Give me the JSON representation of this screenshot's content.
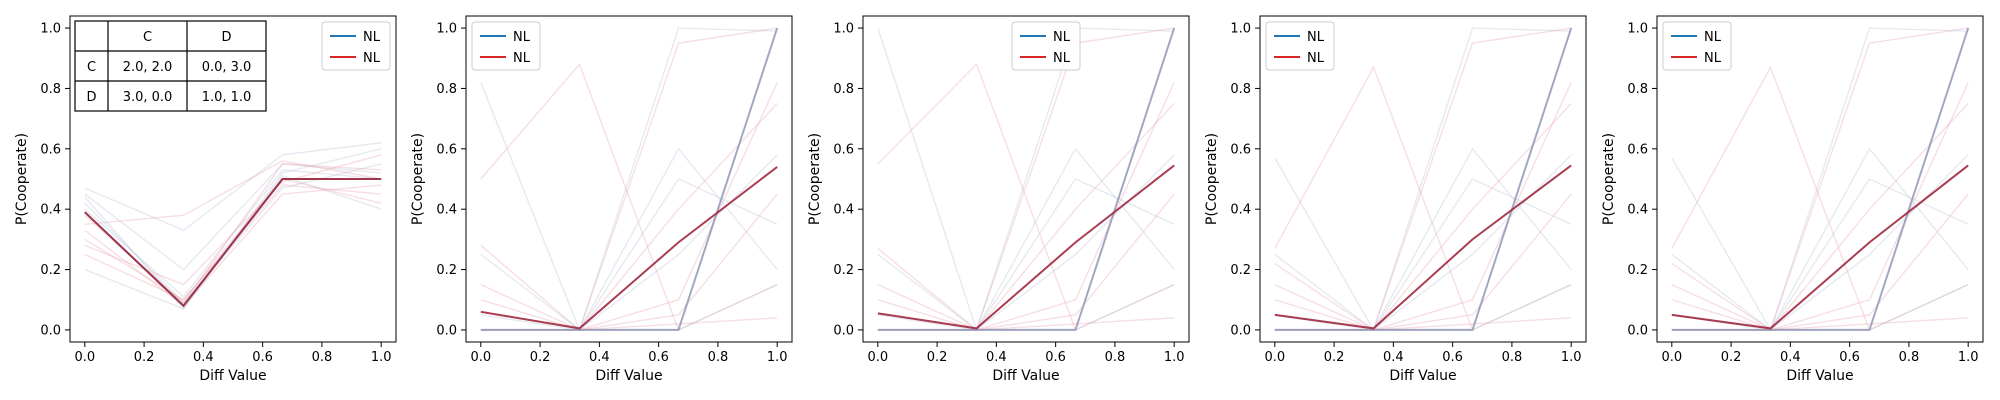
{
  "colors": {
    "blue": "#1f77b4",
    "red": "#d62728",
    "dark_line": "#a0283e",
    "faint_line": "#b8c0d8"
  },
  "payoff_table": {
    "col_headers": [
      "C",
      "D"
    ],
    "rows": [
      {
        "label": "C",
        "cells": [
          "2.0, 2.0",
          "0.0, 3.0"
        ]
      },
      {
        "label": "D",
        "cells": [
          "3.0, 0.0",
          "1.0, 1.0"
        ]
      }
    ]
  },
  "chart_data": [
    {
      "type": "line",
      "xlabel": "Diff Value",
      "ylabel": "P(Cooperate)",
      "xlim": [
        -0.05,
        1.05
      ],
      "ylim": [
        -0.04,
        1.04
      ],
      "xticks": [
        "0.0",
        "0.2",
        "0.4",
        "0.6",
        "0.8",
        "1.0"
      ],
      "yticks": [
        "0.0",
        "0.2",
        "0.4",
        "0.6",
        "0.8",
        "1.0"
      ],
      "legend": {
        "position": "top-right",
        "entries": [
          "NL",
          "NL"
        ]
      },
      "x": [
        0,
        0.333,
        0.667,
        1.0
      ],
      "series": [
        {
          "name": "NL",
          "color": "#1f77b4",
          "values": [
            0.39,
            0.08,
            0.5,
            0.5
          ]
        },
        {
          "name": "NL",
          "color": "#d62728",
          "values": [
            0.39,
            0.08,
            0.5,
            0.5
          ]
        }
      ],
      "faint": [
        [
          0.45,
          0.2,
          0.55,
          0.52
        ],
        [
          0.3,
          0.1,
          0.48,
          0.45
        ],
        [
          0.2,
          0.07,
          0.52,
          0.6
        ],
        [
          0.35,
          0.38,
          0.56,
          0.5
        ],
        [
          0.42,
          0.09,
          0.47,
          0.55
        ],
        [
          0.25,
          0.1,
          0.5,
          0.42
        ],
        [
          0.47,
          0.33,
          0.58,
          0.62
        ],
        [
          0.33,
          0.08,
          0.45,
          0.48
        ],
        [
          0.4,
          0.11,
          0.53,
          0.5
        ],
        [
          0.28,
          0.15,
          0.49,
          0.58
        ],
        [
          0.44,
          0.07,
          0.51,
          0.4
        ],
        [
          0.38,
          0.09,
          0.55,
          0.53
        ]
      ]
    },
    {
      "type": "line",
      "xlabel": "Diff Value",
      "ylabel": "P(Cooperate)",
      "xlim": [
        -0.05,
        1.05
      ],
      "ylim": [
        -0.04,
        1.04
      ],
      "xticks": [
        "0.0",
        "0.2",
        "0.4",
        "0.6",
        "0.8",
        "1.0"
      ],
      "yticks": [
        "0.0",
        "0.2",
        "0.4",
        "0.6",
        "0.8",
        "1.0"
      ],
      "legend": {
        "position": "top-left",
        "entries": [
          "NL",
          "NL"
        ]
      },
      "x": [
        0,
        0.333,
        0.667,
        1.0
      ],
      "series": [
        {
          "name": "NL",
          "color": "#1f77b4",
          "values": [
            0.0,
            0.0,
            0.0,
            1.0
          ]
        },
        {
          "name": "NL",
          "color": "#d62728",
          "values": [
            0.06,
            0.005,
            0.29,
            0.54
          ]
        }
      ],
      "faint": [
        [
          0.82,
          0.0,
          0.0,
          1.0
        ],
        [
          0.5,
          0.88,
          0.0,
          0.15
        ],
        [
          0.0,
          0.0,
          1.0,
          0.99
        ],
        [
          0.28,
          0.0,
          0.95,
          1.0
        ],
        [
          0.0,
          0.0,
          0.6,
          0.2
        ],
        [
          0.1,
          0.0,
          0.1,
          0.82
        ],
        [
          0.25,
          0.0,
          0.25,
          0.58
        ],
        [
          0.0,
          0.0,
          0.02,
          0.04
        ],
        [
          0.05,
          0.0,
          0.5,
          0.35
        ],
        [
          0.0,
          0.0,
          0.4,
          0.75
        ],
        [
          0.0,
          0.0,
          0.0,
          0.15
        ],
        [
          0.15,
          0.0,
          0.05,
          0.45
        ]
      ]
    },
    {
      "type": "line",
      "xlabel": "Diff Value",
      "ylabel": "P(Cooperate)",
      "xlim": [
        -0.05,
        1.05
      ],
      "ylim": [
        -0.04,
        1.04
      ],
      "xticks": [
        "0.0",
        "0.2",
        "0.4",
        "0.6",
        "0.8",
        "1.0"
      ],
      "yticks": [
        "0.0",
        "0.2",
        "0.4",
        "0.6",
        "0.8",
        "1.0"
      ],
      "legend": {
        "position": "top-center",
        "entries": [
          "NL",
          "NL"
        ]
      },
      "x": [
        0,
        0.333,
        0.667,
        1.0
      ],
      "series": [
        {
          "name": "NL",
          "color": "#1f77b4",
          "values": [
            0.0,
            0.0,
            0.0,
            1.0
          ]
        },
        {
          "name": "NL",
          "color": "#d62728",
          "values": [
            0.055,
            0.005,
            0.29,
            0.545
          ]
        }
      ],
      "faint": [
        [
          1.0,
          0.0,
          0.0,
          1.0
        ],
        [
          0.55,
          0.88,
          0.0,
          0.15
        ],
        [
          0.0,
          0.0,
          1.0,
          0.99
        ],
        [
          0.27,
          0.0,
          0.95,
          1.0
        ],
        [
          0.0,
          0.0,
          0.6,
          0.2
        ],
        [
          0.1,
          0.0,
          0.1,
          0.82
        ],
        [
          0.25,
          0.0,
          0.25,
          0.58
        ],
        [
          0.0,
          0.0,
          0.02,
          0.04
        ],
        [
          0.05,
          0.0,
          0.5,
          0.35
        ],
        [
          0.0,
          0.0,
          0.4,
          0.75
        ],
        [
          0.0,
          0.0,
          0.0,
          0.15
        ],
        [
          0.15,
          0.0,
          0.05,
          0.45
        ]
      ]
    },
    {
      "type": "line",
      "xlabel": "Diff Value",
      "ylabel": "P(Cooperate)",
      "xlim": [
        -0.05,
        1.05
      ],
      "ylim": [
        -0.04,
        1.04
      ],
      "xticks": [
        "0.0",
        "0.2",
        "0.4",
        "0.6",
        "0.8",
        "1.0"
      ],
      "yticks": [
        "0.0",
        "0.2",
        "0.4",
        "0.6",
        "0.8",
        "1.0"
      ],
      "legend": {
        "position": "top-left",
        "entries": [
          "NL",
          "NL"
        ]
      },
      "x": [
        0,
        0.333,
        0.667,
        1.0
      ],
      "series": [
        {
          "name": "NL",
          "color": "#1f77b4",
          "values": [
            0.0,
            0.0,
            0.0,
            1.0
          ]
        },
        {
          "name": "NL",
          "color": "#d62728",
          "values": [
            0.05,
            0.005,
            0.3,
            0.545
          ]
        }
      ],
      "faint": [
        [
          0.57,
          0.0,
          0.0,
          1.0
        ],
        [
          0.27,
          0.87,
          0.0,
          0.15
        ],
        [
          0.0,
          0.0,
          1.0,
          0.99
        ],
        [
          0.22,
          0.0,
          0.95,
          1.0
        ],
        [
          0.0,
          0.0,
          0.6,
          0.2
        ],
        [
          0.1,
          0.0,
          0.1,
          0.82
        ],
        [
          0.25,
          0.0,
          0.25,
          0.58
        ],
        [
          0.0,
          0.0,
          0.02,
          0.04
        ],
        [
          0.05,
          0.0,
          0.5,
          0.35
        ],
        [
          0.0,
          0.0,
          0.4,
          0.75
        ],
        [
          0.0,
          0.0,
          0.0,
          0.15
        ],
        [
          0.15,
          0.0,
          0.05,
          0.45
        ]
      ]
    },
    {
      "type": "line",
      "xlabel": "Diff Value",
      "ylabel": "P(Cooperate)",
      "xlim": [
        -0.05,
        1.05
      ],
      "ylim": [
        -0.04,
        1.04
      ],
      "xticks": [
        "0.0",
        "0.2",
        "0.4",
        "0.6",
        "0.8",
        "1.0"
      ],
      "yticks": [
        "0.0",
        "0.2",
        "0.4",
        "0.6",
        "0.8",
        "1.0"
      ],
      "legend": {
        "position": "top-left",
        "entries": [
          "NL",
          "NL"
        ]
      },
      "x": [
        0,
        0.333,
        0.667,
        1.0
      ],
      "series": [
        {
          "name": "NL",
          "color": "#1f77b4",
          "values": [
            0.0,
            0.0,
            0.0,
            1.0
          ]
        },
        {
          "name": "NL",
          "color": "#d62728",
          "values": [
            0.05,
            0.005,
            0.29,
            0.545
          ]
        }
      ],
      "faint": [
        [
          0.57,
          0.0,
          0.0,
          1.0
        ],
        [
          0.27,
          0.87,
          0.0,
          0.15
        ],
        [
          0.0,
          0.0,
          1.0,
          0.99
        ],
        [
          0.22,
          0.0,
          0.95,
          1.0
        ],
        [
          0.0,
          0.0,
          0.6,
          0.2
        ],
        [
          0.1,
          0.0,
          0.1,
          0.82
        ],
        [
          0.25,
          0.0,
          0.25,
          0.58
        ],
        [
          0.0,
          0.0,
          0.02,
          0.04
        ],
        [
          0.05,
          0.0,
          0.5,
          0.35
        ],
        [
          0.0,
          0.0,
          0.4,
          0.75
        ],
        [
          0.0,
          0.0,
          0.0,
          0.15
        ],
        [
          0.15,
          0.0,
          0.05,
          0.45
        ]
      ]
    }
  ]
}
